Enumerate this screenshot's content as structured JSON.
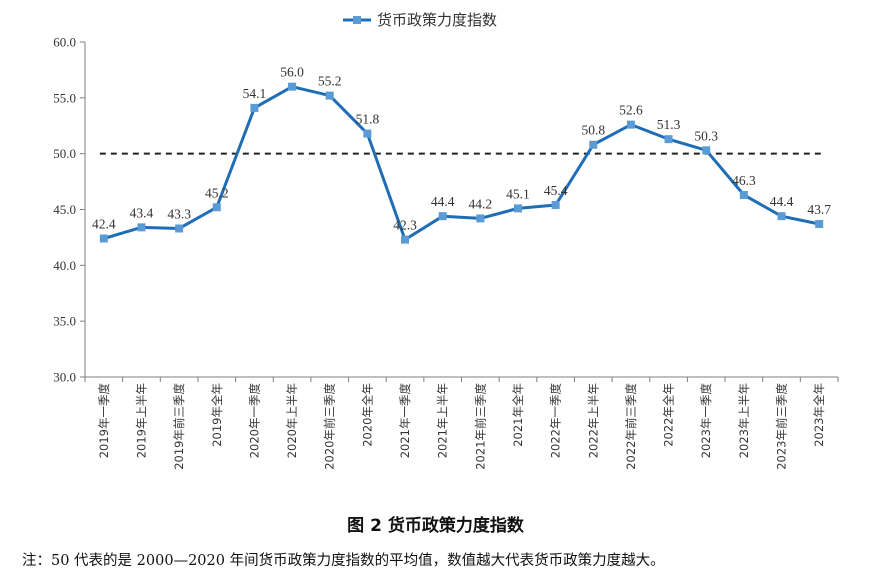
{
  "chart_data": {
    "type": "line",
    "legend": "货币政策力度指数",
    "legend_position": "top-center",
    "categories": [
      "2019年一季度",
      "2019年上半年",
      "2019年前三季度",
      "2019年全年",
      "2020年一季度",
      "2020年上半年",
      "2020年前三季度",
      "2020年全年",
      "2021年一季度",
      "2021年上半年",
      "2021年前三季度",
      "2021年全年",
      "2022年一季度",
      "2022年上半年",
      "2022年前三季度",
      "2022年全年",
      "2023年一季度",
      "2023年上半年",
      "2023年前三季度",
      "2023年全年"
    ],
    "series": [
      {
        "name": "货币政策力度指数",
        "color": "#1f6db5",
        "marker_color": "#5b9bd5",
        "values": [
          42.4,
          43.4,
          43.3,
          45.2,
          54.1,
          56.0,
          55.2,
          51.8,
          42.3,
          44.4,
          44.2,
          45.1,
          45.4,
          50.8,
          52.6,
          51.3,
          50.3,
          46.3,
          44.4,
          43.7
        ],
        "labels": [
          "42.4",
          "43.4",
          "43.3",
          "45.2",
          "54.1",
          "56.0",
          "55.2",
          "51.8",
          "42.3",
          "44.4",
          "44.2",
          "45.1",
          "45.4",
          "50.8",
          "52.6",
          "51.3",
          "50.3",
          "46.3",
          "44.4",
          "43.7"
        ]
      }
    ],
    "reference_line": {
      "value": 50.0,
      "style": "dashed"
    },
    "ylim": [
      30.0,
      60.0
    ],
    "yticks": [
      "30.0",
      "35.0",
      "40.0",
      "45.0",
      "50.0",
      "55.0",
      "60.0"
    ],
    "grid": false
  },
  "caption": "图 2 货币政策力度指数",
  "note": "注：50 代表的是 2000—2020 年间货币政策力度指数的平均值，数值越大代表货币政策力度越大。"
}
